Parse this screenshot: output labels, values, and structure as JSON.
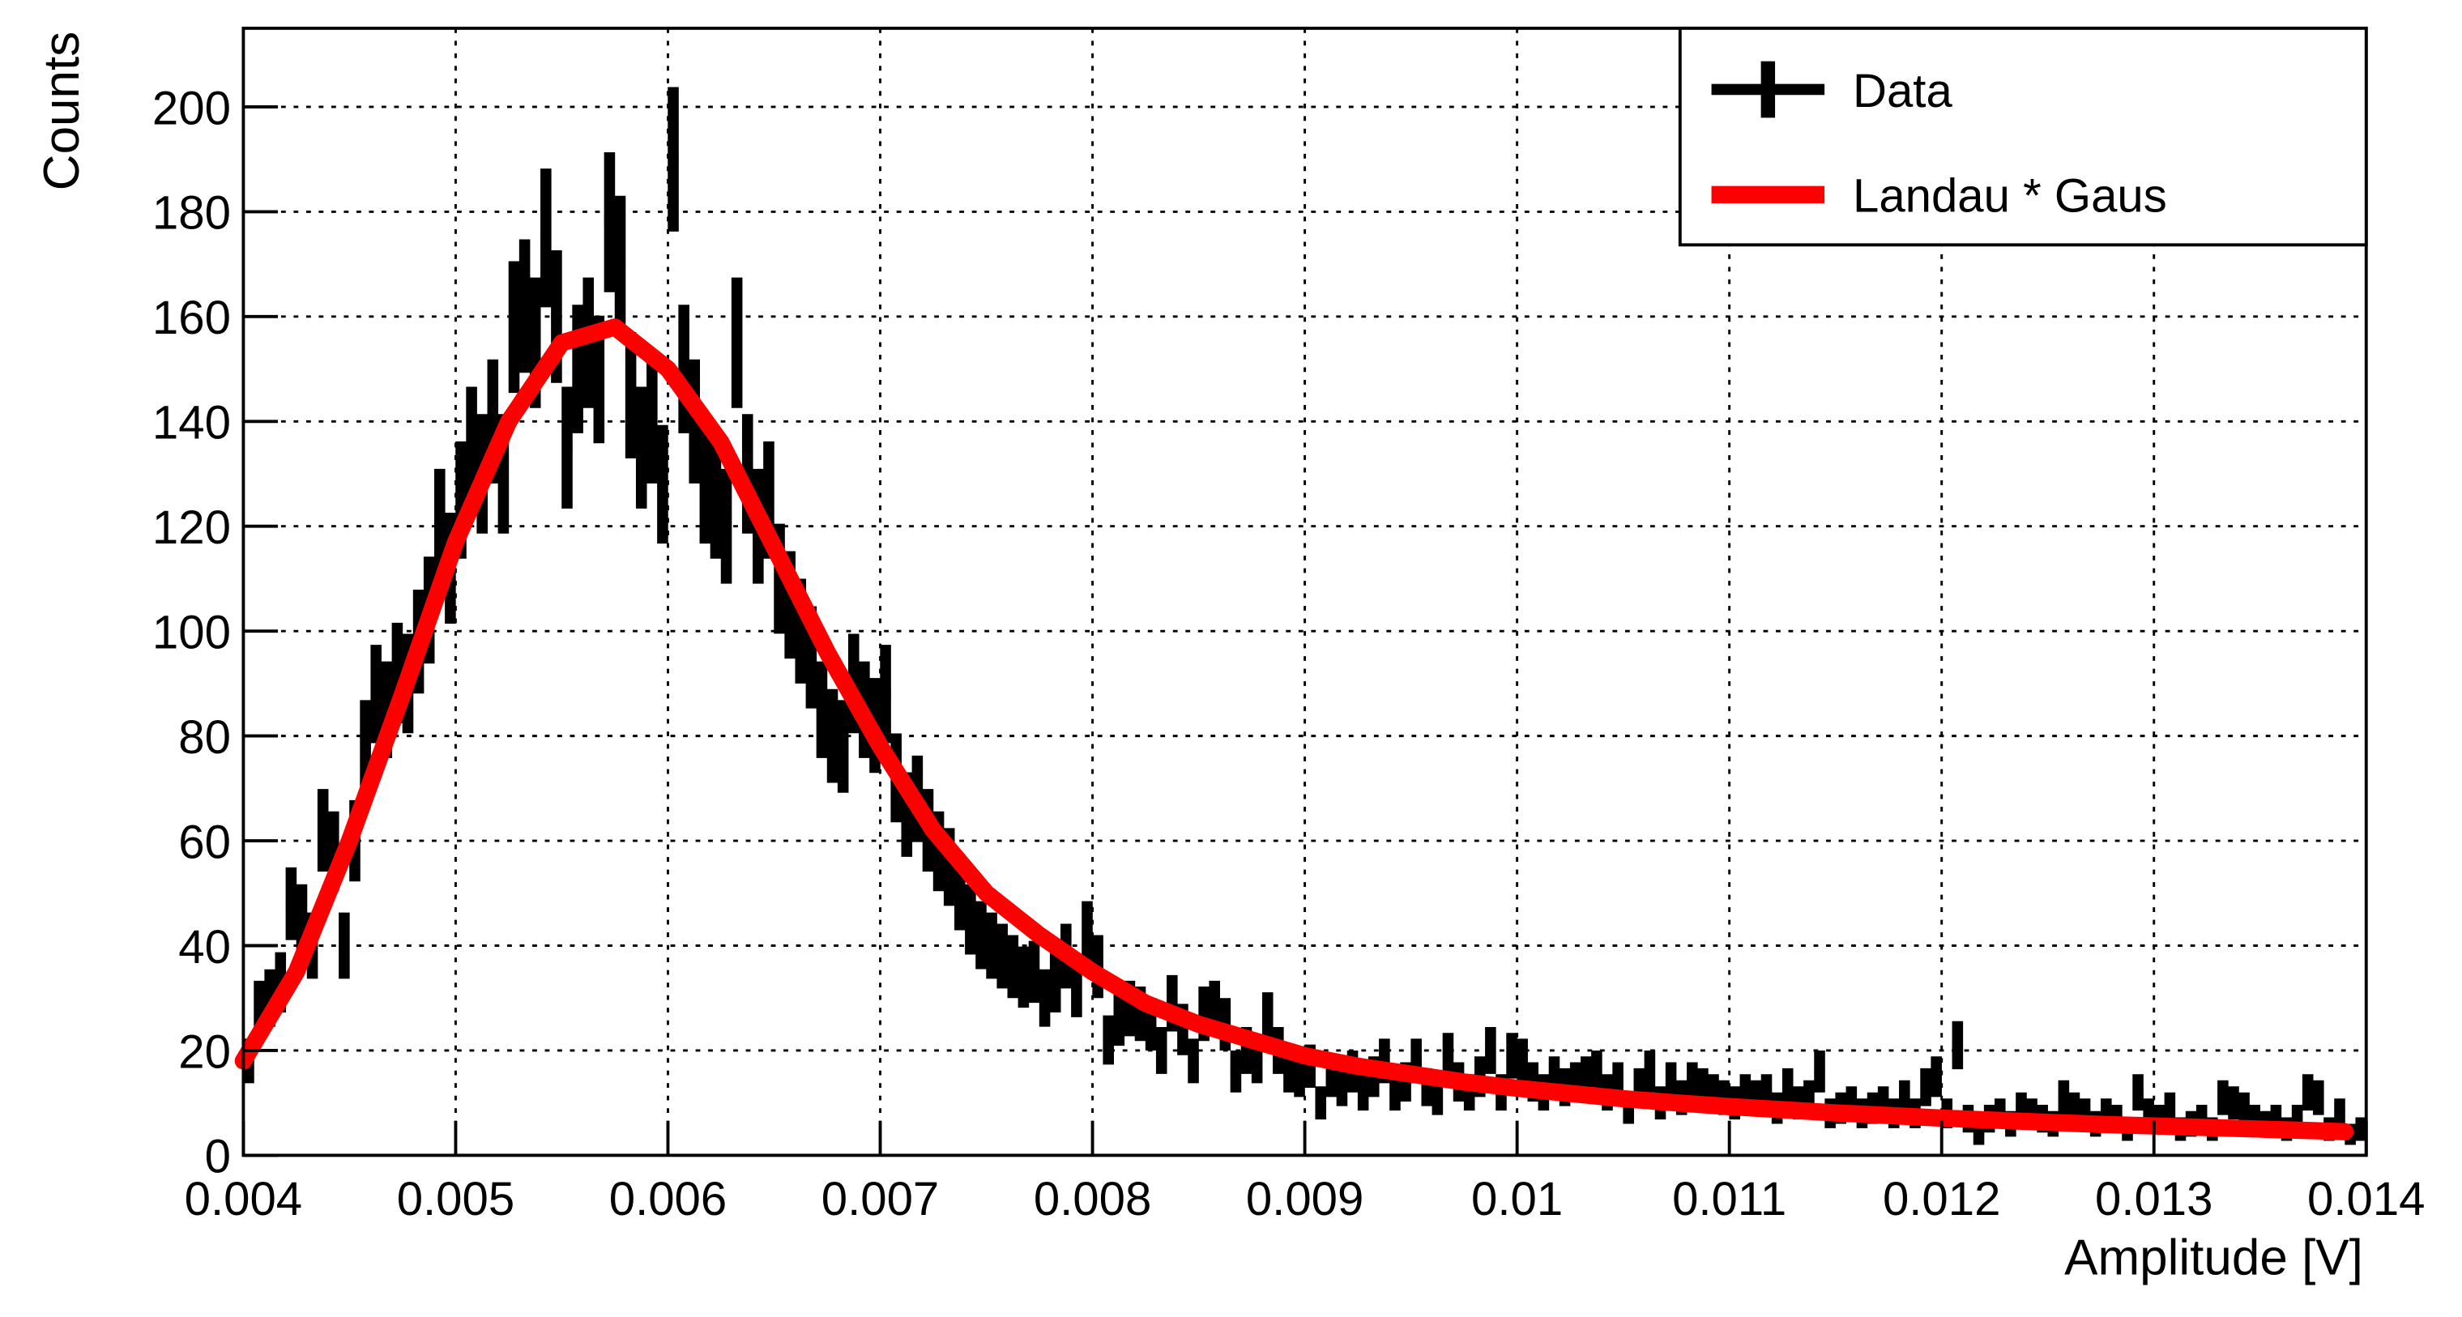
{
  "chart_data": {
    "type": "histogram",
    "xlabel": "Amplitude [V]",
    "ylabel": "Counts",
    "xlim": [
      0.004,
      0.014
    ],
    "ylim": [
      0,
      215
    ],
    "xticks": [
      0.004,
      0.005,
      0.006,
      0.007,
      0.008,
      0.009,
      0.01,
      0.011,
      0.012,
      0.013,
      0.014
    ],
    "yticks": [
      0,
      20,
      40,
      60,
      80,
      100,
      120,
      140,
      160,
      180,
      200
    ],
    "grid": true,
    "legend": "top-right",
    "bins": [
      0.004,
      0.00405,
      0.0041,
      0.00415,
      0.0042,
      0.00425,
      0.0043,
      0.00435,
      0.0044,
      0.00445,
      0.0045,
      0.00455,
      0.0046,
      0.00465,
      0.0047,
      0.00475,
      0.0048,
      0.00485,
      0.0049,
      0.00495,
      0.005,
      0.00505,
      0.0051,
      0.00515,
      0.0052,
      0.00525,
      0.0053,
      0.00535,
      0.0054,
      0.00545,
      0.0055,
      0.00555,
      0.0056,
      0.00565,
      0.0057,
      0.00575,
      0.0058,
      0.00585,
      0.0059,
      0.00595,
      0.006,
      0.00605,
      0.0061,
      0.00615,
      0.0062,
      0.00625,
      0.0063,
      0.00635,
      0.0064,
      0.00645,
      0.0065,
      0.00655,
      0.0066,
      0.00665,
      0.0067,
      0.00675,
      0.0068,
      0.00685,
      0.0069,
      0.00695,
      0.007,
      0.00705,
      0.0071,
      0.00715,
      0.0072,
      0.00725,
      0.0073,
      0.00735,
      0.0074,
      0.00745,
      0.0075,
      0.00755,
      0.0076,
      0.00765,
      0.0077,
      0.00775,
      0.0078,
      0.00785,
      0.0079,
      0.00795,
      0.008,
      0.00805,
      0.0081,
      0.00815,
      0.0082,
      0.00825,
      0.0083,
      0.00835,
      0.0084,
      0.00845,
      0.0085,
      0.00855,
      0.0086,
      0.00865,
      0.0087,
      0.00875,
      0.0088,
      0.00885,
      0.0089,
      0.00895,
      0.009,
      0.00905,
      0.0091,
      0.00915,
      0.0092,
      0.00925,
      0.0093,
      0.00935,
      0.0094,
      0.00945,
      0.0095,
      0.00955,
      0.0096,
      0.00965,
      0.0097,
      0.00975,
      0.0098,
      0.00985,
      0.0099,
      0.00995,
      0.01,
      0.01005,
      0.0101,
      0.01015,
      0.0102,
      0.01025,
      0.0103,
      0.01035,
      0.0104,
      0.01045,
      0.0105,
      0.01055,
      0.0106,
      0.01065,
      0.0107,
      0.01075,
      0.0108,
      0.01085,
      0.0109,
      0.01095,
      0.011,
      0.01105,
      0.0111,
      0.01115,
      0.0112,
      0.01125,
      0.0113,
      0.01135,
      0.0114,
      0.01145,
      0.0115,
      0.01155,
      0.0116,
      0.01165,
      0.0117,
      0.01175,
      0.0118,
      0.01185,
      0.0119,
      0.01195,
      0.012,
      0.01205,
      0.0121,
      0.01215,
      0.0122,
      0.01225,
      0.0123,
      0.01235,
      0.0124,
      0.01245,
      0.0125,
      0.01255,
      0.0126,
      0.01265,
      0.0127,
      0.01275,
      0.0128,
      0.01285,
      0.0129,
      0.01295,
      0.013,
      0.01305,
      0.0131,
      0.01315,
      0.0132,
      0.01325,
      0.0133,
      0.01335,
      0.0134,
      0.01345,
      0.0135,
      0.01355,
      0.0136,
      0.01365,
      0.0137,
      0.01375,
      0.0138,
      0.01385,
      0.0139,
      0.01395,
      0.014
    ],
    "series": [
      {
        "name": "Data",
        "type": "histogram",
        "color": "#000000",
        "values": [
          18,
          28,
          30,
          33,
          48,
          45,
          40,
          62,
          58,
          40,
          60,
          78,
          88,
          85,
          92,
          90,
          98,
          104,
          120,
          112,
          125,
          135,
          130,
          140,
          130,
          158,
          162,
          155,
          175,
          160,
          135,
          150,
          155,
          148,
          178,
          170,
          145,
          135,
          140,
          128,
          190,
          150,
          140,
          128,
          125,
          120,
          155,
          130,
          120,
          125,
          110,
          105,
          100,
          95,
          85,
          80,
          78,
          90,
          85,
          82,
          88,
          72,
          65,
          68,
          62,
          58,
          55,
          50,
          45,
          42,
          40,
          38,
          36,
          34,
          35,
          30,
          33,
          38,
          32,
          42,
          36,
          22,
          26,
          28,
          27,
          25,
          20,
          29,
          24,
          18,
          27,
          28,
          25,
          16,
          20,
          18,
          26,
          20,
          16,
          15,
          17,
          10,
          15,
          13,
          16,
          12,
          15,
          18,
          12,
          14,
          18,
          13,
          11,
          19,
          14,
          12,
          15,
          20,
          12,
          19,
          18,
          14,
          12,
          15,
          13,
          14,
          15,
          16,
          12,
          14,
          9,
          13,
          16,
          10,
          14,
          11,
          14,
          13,
          12,
          11,
          10,
          12,
          11,
          12,
          9,
          13,
          10,
          11,
          16,
          8,
          9,
          10,
          8,
          9,
          10,
          8,
          11,
          8,
          13,
          15,
          8,
          21,
          7,
          4,
          7,
          8,
          6,
          9,
          8,
          7,
          6,
          11,
          9,
          8,
          6,
          8,
          7,
          5,
          12,
          8,
          7,
          9,
          5,
          6,
          7,
          5,
          11,
          10,
          9,
          7,
          6,
          7,
          5,
          7,
          12,
          11,
          5,
          8,
          4,
          5
        ]
      },
      {
        "name": "Landau * Gaus",
        "type": "line",
        "color": "#ff0000",
        "x": [
          0.004,
          0.00425,
          0.0045,
          0.00475,
          0.005,
          0.00525,
          0.0055,
          0.00575,
          0.006,
          0.00625,
          0.0065,
          0.00675,
          0.007,
          0.00725,
          0.0075,
          0.00775,
          0.008,
          0.00825,
          0.0085,
          0.00875,
          0.009,
          0.00925,
          0.0095,
          0.00975,
          0.01,
          0.01025,
          0.0105,
          0.01075,
          0.011,
          0.01125,
          0.0115,
          0.01175,
          0.012,
          0.01225,
          0.0125,
          0.01275,
          0.013,
          0.01325,
          0.0135,
          0.01375,
          0.0139
        ],
        "values": [
          18,
          35,
          60,
          88,
          117,
          140,
          155,
          158,
          150,
          136,
          116,
          96,
          78,
          62,
          50,
          42,
          35,
          29,
          25,
          22,
          19,
          17,
          15.5,
          14,
          12.8,
          11.8,
          10.8,
          10,
          9.3,
          8.7,
          8.1,
          7.6,
          7.1,
          6.7,
          6.3,
          5.9,
          5.6,
          5.3,
          5,
          4.7,
          4.5
        ]
      }
    ]
  }
}
